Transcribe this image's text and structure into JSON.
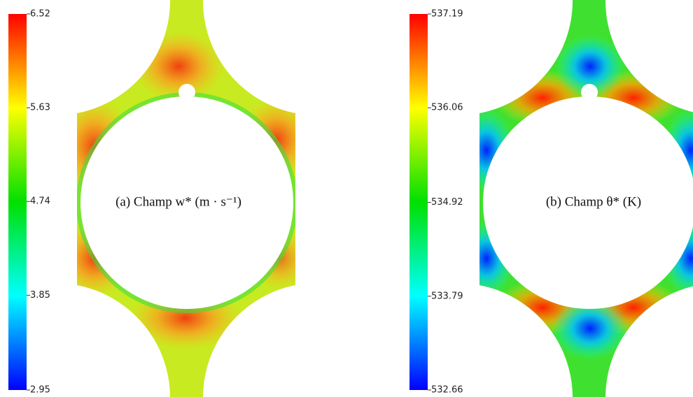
{
  "panels": [
    {
      "caption": "(a) Champ w* (m · s⁻¹)",
      "colorbar": {
        "lim": [
          2.95,
          6.52
        ],
        "ticks": [
          2.95,
          3.85,
          4.74,
          5.63,
          6.52
        ]
      }
    },
    {
      "caption": "(b) Champ θ* (K)",
      "colorbar": {
        "lim": [
          532.66,
          537.19
        ],
        "ticks": [
          532.66,
          533.79,
          534.92,
          536.06,
          537.19
        ]
      }
    }
  ]
}
